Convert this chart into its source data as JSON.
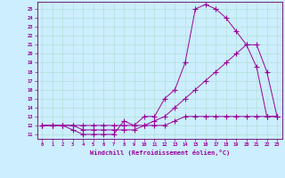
{
  "xlabel": "Windchill (Refroidissement éolien,°C)",
  "background_color": "#cceeff",
  "grid_color": "#aaddcc",
  "line_color": "#990099",
  "spine_color": "#660066",
  "xlim": [
    -0.5,
    23.5
  ],
  "ylim": [
    10.5,
    25.8
  ],
  "xticks": [
    0,
    1,
    2,
    3,
    4,
    5,
    6,
    7,
    8,
    9,
    10,
    11,
    12,
    13,
    14,
    15,
    16,
    17,
    18,
    19,
    20,
    21,
    22,
    23
  ],
  "yticks": [
    11,
    12,
    13,
    14,
    15,
    16,
    17,
    18,
    19,
    20,
    21,
    22,
    23,
    24,
    25
  ],
  "series": [
    {
      "x": [
        0,
        1,
        2,
        3,
        4,
        5,
        6,
        7,
        8,
        9,
        10,
        11,
        12,
        13,
        14,
        15,
        16,
        17,
        18,
        19,
        20,
        21,
        22,
        23
      ],
      "y": [
        12,
        12,
        12,
        11.5,
        11,
        11,
        11,
        11,
        12.5,
        12,
        13,
        13,
        15,
        16,
        19,
        25,
        25.5,
        25,
        24,
        22.5,
        21,
        18.5,
        13,
        13
      ]
    },
    {
      "x": [
        0,
        1,
        2,
        3,
        4,
        5,
        6,
        7,
        8,
        9,
        10,
        11,
        12,
        13,
        14,
        15,
        16,
        17,
        18,
        19,
        20,
        21,
        22,
        23
      ],
      "y": [
        12,
        12,
        12,
        12,
        11.5,
        11.5,
        11.5,
        11.5,
        11.5,
        11.5,
        12,
        12.5,
        13,
        14,
        15,
        16,
        17,
        18,
        19,
        20,
        21,
        21,
        18,
        13
      ]
    },
    {
      "x": [
        0,
        1,
        2,
        3,
        4,
        5,
        6,
        7,
        8,
        9,
        10,
        11,
        12,
        13,
        14,
        15,
        16,
        17,
        18,
        19,
        20,
        21,
        22,
        23
      ],
      "y": [
        12,
        12,
        12,
        12,
        12,
        12,
        12,
        12,
        12,
        12,
        12,
        12,
        12,
        12.5,
        13,
        13,
        13,
        13,
        13,
        13,
        13,
        13,
        13,
        13
      ]
    }
  ]
}
